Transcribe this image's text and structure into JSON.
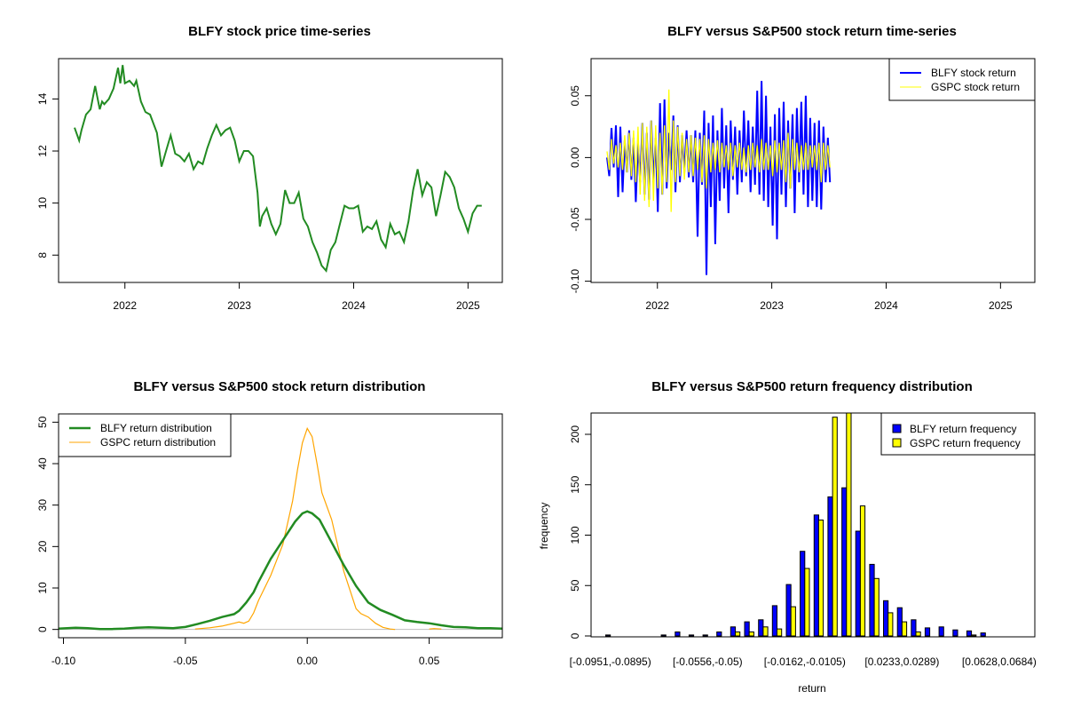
{
  "chart_data": [
    {
      "id": "price",
      "type": "line",
      "title": "BLFY stock price time-series",
      "xlabel": "",
      "ylabel": "",
      "xlim": [
        2021.42,
        2025.3
      ],
      "ylim": [
        6.95,
        15.55
      ],
      "x_ticks": [
        2022,
        2023,
        2024,
        2025
      ],
      "x_tick_labels": [
        "2022",
        "2023",
        "2024",
        "2025"
      ],
      "y_ticks": [
        8,
        10,
        12,
        14
      ],
      "y_tick_labels": [
        "8",
        "10",
        "12",
        "14"
      ],
      "colors": {
        "line": "#228B22"
      },
      "series": [
        {
          "name": "BLFY",
          "x": [
            2021.56,
            2021.6,
            2021.62,
            2021.66,
            2021.7,
            2021.74,
            2021.78,
            2021.8,
            2021.82,
            2021.86,
            2021.9,
            2021.94,
            2021.96,
            2021.98,
            2022.0,
            2022.04,
            2022.08,
            2022.1,
            2022.14,
            2022.18,
            2022.22,
            2022.28,
            2022.32,
            2022.36,
            2022.4,
            2022.44,
            2022.48,
            2022.52,
            2022.56,
            2022.6,
            2022.64,
            2022.68,
            2022.72,
            2022.76,
            2022.8,
            2022.84,
            2022.88,
            2022.92,
            2022.96,
            2023.0,
            2023.04,
            2023.08,
            2023.12,
            2023.16,
            2023.18,
            2023.2,
            2023.24,
            2023.28,
            2023.32,
            2023.36,
            2023.4,
            2023.44,
            2023.48,
            2023.52,
            2023.56,
            2023.6,
            2023.64,
            2023.68,
            2023.72,
            2023.76,
            2023.8,
            2023.84,
            2023.88,
            2023.92,
            2023.96,
            2024.0,
            2024.04,
            2024.08,
            2024.12,
            2024.16,
            2024.2,
            2024.24,
            2024.28,
            2024.32,
            2024.36,
            2024.4,
            2024.44,
            2024.48,
            2024.52,
            2024.56,
            2024.6,
            2024.64,
            2024.68,
            2024.72,
            2024.76,
            2024.8,
            2024.84,
            2024.88,
            2024.92,
            2024.96,
            2025.0,
            2025.04,
            2025.08,
            2025.12
          ],
          "y": [
            12.9,
            12.4,
            12.8,
            13.4,
            13.6,
            14.5,
            13.6,
            13.9,
            13.8,
            14.0,
            14.4,
            15.2,
            14.6,
            15.3,
            14.6,
            14.7,
            14.5,
            14.7,
            13.9,
            13.5,
            13.4,
            12.7,
            11.4,
            12.0,
            12.6,
            11.9,
            11.8,
            11.6,
            11.9,
            11.3,
            11.6,
            11.5,
            12.1,
            12.6,
            13.0,
            12.6,
            12.8,
            12.9,
            12.4,
            11.6,
            12.0,
            12.0,
            11.8,
            10.4,
            9.1,
            9.5,
            9.8,
            9.2,
            8.8,
            9.2,
            10.5,
            10.0,
            10.0,
            10.4,
            9.4,
            9.1,
            8.5,
            8.1,
            7.6,
            7.4,
            8.2,
            8.5,
            9.2,
            9.9,
            9.8,
            9.8,
            9.9,
            8.9,
            9.1,
            9.0,
            9.3,
            8.6,
            8.3,
            9.2,
            8.8,
            8.9,
            8.5,
            9.3,
            10.5,
            11.3,
            10.3,
            10.8,
            10.6,
            9.5,
            10.3,
            11.2,
            11.0,
            10.6,
            9.8,
            9.4,
            8.9,
            9.6,
            9.9,
            9.9
          ]
        }
      ]
    },
    {
      "id": "returns",
      "type": "line",
      "title": "BLFY versus S&P500 stock return time-series",
      "xlabel": "",
      "ylabel": "",
      "xlim": [
        2021.42,
        2025.3
      ],
      "ylim": [
        -0.101,
        0.08
      ],
      "x_ticks": [
        2022,
        2023,
        2024,
        2025
      ],
      "x_tick_labels": [
        "2022",
        "2023",
        "2024",
        "2025"
      ],
      "y_ticks": [
        -0.1,
        -0.05,
        0.0,
        0.05
      ],
      "y_tick_labels": [
        "-0.10",
        "-0.05",
        "0.00",
        "0.05"
      ],
      "legend": {
        "position": "top-right",
        "entries": [
          "BLFY stock return",
          "GSPC stock return"
        ]
      },
      "colors": {
        "BLFY": "#0000FF",
        "GSPC": "#FFFF00"
      },
      "series": [
        {
          "name": "BLFY stock return",
          "x_start": 2021.56,
          "x_step": 0.0193,
          "y": [
            0.0,
            -0.015,
            0.024,
            -0.008,
            0.026,
            -0.032,
            0.025,
            -0.028,
            0.014,
            -0.012,
            0.022,
            -0.018,
            0.016,
            -0.036,
            0.012,
            -0.02,
            0.028,
            -0.03,
            0.02,
            -0.034,
            0.03,
            -0.02,
            0.016,
            -0.044,
            0.044,
            -0.03,
            0.047,
            -0.025,
            0.02,
            -0.01,
            0.034,
            -0.028,
            0.026,
            -0.02,
            0.018,
            -0.012,
            0.022,
            -0.016,
            0.018,
            -0.02,
            0.022,
            -0.064,
            0.02,
            -0.022,
            0.038,
            -0.095,
            0.028,
            -0.04,
            0.034,
            -0.07,
            0.022,
            -0.035,
            0.04,
            -0.025,
            0.026,
            -0.045,
            0.03,
            -0.018,
            0.025,
            -0.03,
            0.022,
            -0.02,
            0.038,
            -0.015,
            0.03,
            -0.028,
            0.025,
            -0.022,
            0.054,
            -0.03,
            0.062,
            -0.035,
            0.05,
            -0.04,
            0.025,
            -0.055,
            0.035,
            -0.066,
            0.04,
            -0.03,
            0.045,
            -0.04,
            0.03,
            -0.025,
            0.035,
            -0.045,
            0.04,
            -0.02,
            0.045,
            -0.03,
            0.05,
            -0.04,
            0.032,
            -0.035,
            0.028,
            -0.04,
            0.03,
            -0.042,
            0.025,
            -0.02,
            0.016,
            -0.02
          ]
        },
        {
          "name": "GSPC stock return",
          "x_start": 2021.56,
          "x_step": 0.0193,
          "y": [
            0.005,
            -0.01,
            0.015,
            -0.005,
            0.01,
            -0.008,
            0.012,
            -0.01,
            0.018,
            -0.012,
            0.02,
            -0.015,
            0.022,
            -0.02,
            0.025,
            -0.03,
            0.028,
            -0.035,
            0.025,
            -0.04,
            0.03,
            -0.035,
            0.026,
            -0.025,
            0.02,
            -0.03,
            0.026,
            -0.02,
            0.055,
            -0.044,
            0.03,
            -0.02,
            0.025,
            -0.015,
            0.02,
            -0.018,
            0.015,
            -0.012,
            0.018,
            -0.015,
            0.016,
            -0.01,
            0.015,
            -0.02,
            0.018,
            -0.025,
            0.015,
            -0.012,
            0.012,
            -0.01,
            0.014,
            -0.012,
            0.012,
            -0.008,
            0.01,
            -0.01,
            0.012,
            -0.015,
            0.01,
            -0.008,
            0.012,
            -0.01,
            0.008,
            -0.012,
            0.01,
            -0.01,
            0.012,
            -0.008,
            0.01,
            -0.012,
            0.015,
            -0.01,
            0.012,
            -0.01,
            0.01,
            -0.015,
            0.014,
            -0.012,
            0.012,
            -0.01,
            0.014,
            -0.02,
            0.02,
            -0.025,
            0.015,
            -0.01,
            0.012,
            -0.012,
            0.01,
            -0.01,
            0.012,
            -0.01,
            0.01,
            -0.008,
            0.01,
            -0.01,
            0.012,
            -0.02,
            0.012,
            -0.01,
            0.01,
            -0.008
          ]
        }
      ]
    },
    {
      "id": "density",
      "type": "line",
      "title": "BLFY versus S&P500 stock return distribution",
      "xlabel": "",
      "ylabel": "",
      "xlim": [
        -0.102,
        0.08
      ],
      "ylim": [
        -2,
        52
      ],
      "x_ticks": [
        -0.1,
        -0.05,
        0.0,
        0.05
      ],
      "x_tick_labels": [
        "-0.10",
        "-0.05",
        "0.00",
        "0.05"
      ],
      "y_ticks": [
        0,
        10,
        20,
        30,
        40,
        50
      ],
      "y_tick_labels": [
        "0",
        "10",
        "20",
        "30",
        "40",
        "50"
      ],
      "legend": {
        "position": "top-left",
        "entries": [
          "BLFY return distribution",
          "GSPC return distribution"
        ]
      },
      "colors": {
        "BLFY": "#228B22",
        "GSPC": "#FFA500",
        "baseline": "#BEBEBE"
      },
      "series": [
        {
          "name": "BLFY return distribution",
          "x": [
            -0.102,
            -0.095,
            -0.09,
            -0.085,
            -0.08,
            -0.075,
            -0.07,
            -0.065,
            -0.06,
            -0.055,
            -0.05,
            -0.045,
            -0.04,
            -0.035,
            -0.03,
            -0.028,
            -0.025,
            -0.022,
            -0.02,
            -0.015,
            -0.01,
            -0.005,
            -0.002,
            0.0,
            0.002,
            0.005,
            0.01,
            0.015,
            0.02,
            0.025,
            0.03,
            0.035,
            0.04,
            0.045,
            0.05,
            0.055,
            0.06,
            0.065,
            0.07,
            0.075,
            0.08
          ],
          "y": [
            0.2,
            0.4,
            0.3,
            0.1,
            0.1,
            0.2,
            0.4,
            0.5,
            0.4,
            0.3,
            0.6,
            1.3,
            2.1,
            3.0,
            3.7,
            4.5,
            6.5,
            9.0,
            11.5,
            17.0,
            21.5,
            26.0,
            28.0,
            28.5,
            28.0,
            26.5,
            21.0,
            15.5,
            10.5,
            6.5,
            4.7,
            3.5,
            2.2,
            1.8,
            1.5,
            1.0,
            0.6,
            0.5,
            0.3,
            0.3,
            0.2
          ]
        },
        {
          "name": "GSPC return distribution",
          "x": [
            -0.046,
            -0.04,
            -0.035,
            -0.03,
            -0.028,
            -0.026,
            -0.024,
            -0.022,
            -0.02,
            -0.015,
            -0.01,
            -0.006,
            -0.004,
            -0.002,
            0.0,
            0.002,
            0.004,
            0.006,
            0.01,
            0.015,
            0.02,
            0.022,
            0.025,
            0.028,
            0.031,
            0.034,
            0.036
          ],
          "y": [
            0.1,
            0.4,
            0.8,
            1.5,
            1.8,
            1.5,
            2.0,
            4.0,
            7.0,
            13.0,
            20.5,
            31.0,
            38.5,
            45.0,
            48.5,
            46.5,
            40.0,
            33.0,
            26.5,
            14.0,
            5.0,
            3.8,
            3.0,
            1.5,
            0.5,
            0.1,
            0.0
          ]
        },
        {
          "name": "GSPC right tail",
          "x": [
            0.05,
            0.052,
            0.055
          ],
          "y": [
            0.1,
            0.2,
            0.1
          ]
        }
      ]
    },
    {
      "id": "histogram",
      "type": "bar",
      "title": "BLFY versus S&P500 return frequency distribution",
      "xlabel": "return",
      "ylabel": "frequency",
      "ylim": [
        0,
        220
      ],
      "y_ticks": [
        0,
        50,
        100,
        150,
        200
      ],
      "y_tick_labels": [
        "0",
        "50",
        "100",
        "150",
        "200"
      ],
      "x_tick_labels": [
        "[-0.0951,-0.0895)",
        "[-0.0556,-0.05)",
        "[-0.0162,-0.0105)",
        "[0.0233,0.0289)",
        "[0.0628,0.0684)"
      ],
      "x_tick_label_bins": [
        0,
        7,
        14,
        21,
        28
      ],
      "legend": {
        "position": "top-right",
        "entries": [
          "BLFY return frequency",
          "GSPC return frequency"
        ]
      },
      "colors": {
        "BLFY": "#0000FF",
        "GSPC": "#FFFF00"
      },
      "bins": 30,
      "series": [
        {
          "name": "BLFY return frequency",
          "values": [
            1,
            0,
            0,
            0,
            1,
            4,
            1,
            1,
            4,
            9,
            14,
            16,
            30,
            51,
            84,
            120,
            138,
            147,
            104,
            71,
            35,
            28,
            16,
            8,
            9,
            6,
            5,
            3,
            0,
            0
          ]
        },
        {
          "name": "GSPC return frequency",
          "values": [
            0,
            0,
            0,
            0,
            0,
            0,
            0,
            0,
            0,
            4,
            4,
            9,
            7,
            29,
            67,
            115,
            217,
            225,
            129,
            57,
            23,
            14,
            4,
            0,
            0,
            0,
            1,
            0,
            0,
            0
          ]
        }
      ]
    }
  ]
}
